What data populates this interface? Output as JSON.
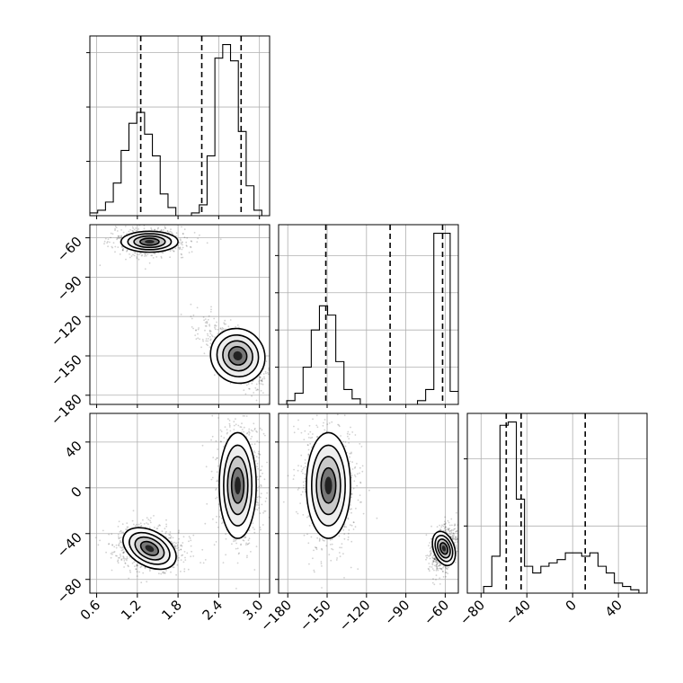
{
  "chart_data": {
    "type": "corner",
    "params": [
      "p0",
      "p1",
      "p2"
    ],
    "ranges": [
      [
        0.5,
        3.15
      ],
      [
        -187,
        -50
      ],
      [
        -92,
        65
      ]
    ],
    "ticks": [
      {
        "values": [
          0.6,
          1.2,
          1.8,
          2.4,
          3.0
        ],
        "labels": [
          "0.6",
          "1.2",
          "1.8",
          "2.4",
          "3.0"
        ]
      },
      {
        "values": [
          -180,
          -150,
          -120,
          -90,
          -60
        ],
        "labels": [
          "−180",
          "−150",
          "−120",
          "−90",
          "−60"
        ]
      },
      {
        "values": [
          -80,
          -40,
          0,
          40
        ],
        "labels": [
          "−80",
          "−40",
          "0",
          "40"
        ]
      }
    ],
    "grid": true,
    "colors": {
      "line": "#000000",
      "grid": "#b0b0b0",
      "scatter": "#000000"
    },
    "histograms": [
      {
        "param": "p0",
        "bin_counts": [
          1,
          2,
          5,
          12,
          24,
          34,
          38,
          30,
          22,
          8,
          3,
          0,
          0,
          1,
          4,
          22,
          58,
          63,
          57,
          31,
          11,
          2,
          0
        ],
        "quantiles": [
          1.25,
          2.15,
          2.73
        ]
      },
      {
        "param": "p1",
        "bin_counts": [
          0,
          2,
          6,
          20,
          40,
          53,
          48,
          23,
          8,
          3,
          0,
          0,
          0,
          0,
          0,
          0,
          0,
          2,
          8,
          92,
          92,
          7
        ],
        "quantiles": [
          -151,
          -102,
          -62
        ]
      },
      {
        "param": "p2",
        "bin_counts": [
          0,
          0,
          2,
          11,
          50,
          51,
          28,
          8,
          6,
          8,
          9,
          10,
          12,
          12,
          11,
          12,
          8,
          6,
          3,
          2,
          1,
          0
        ],
        "quantiles": [
          -58,
          -45,
          11
        ]
      }
    ],
    "modes_2d": [
      {
        "x": "p0",
        "y": "p1",
        "modes": [
          {
            "cx": 1.38,
            "cy": -63,
            "sx": 0.2,
            "sy": 3.8,
            "rho": 0
          },
          {
            "cx": 2.68,
            "cy": -150,
            "sx": 0.14,
            "sy": 12,
            "rho": -0.6
          }
        ]
      },
      {
        "x": "p0",
        "y": "p2",
        "modes": [
          {
            "cx": 1.38,
            "cy": -53,
            "sx": 0.2,
            "sy": 7.5,
            "rho": -0.2
          },
          {
            "cx": 2.68,
            "cy": 2,
            "sx": 0.13,
            "sy": 22,
            "rho": 0
          }
        ]
      },
      {
        "x": "p1",
        "y": "p2",
        "modes": [
          {
            "cx": -149,
            "cy": 2,
            "sx": 8,
            "sy": 22,
            "rho": 0
          },
          {
            "cx": -61,
            "cy": -53,
            "sx": 3.6,
            "sy": 7.5,
            "rho": 0.2
          }
        ]
      }
    ]
  }
}
